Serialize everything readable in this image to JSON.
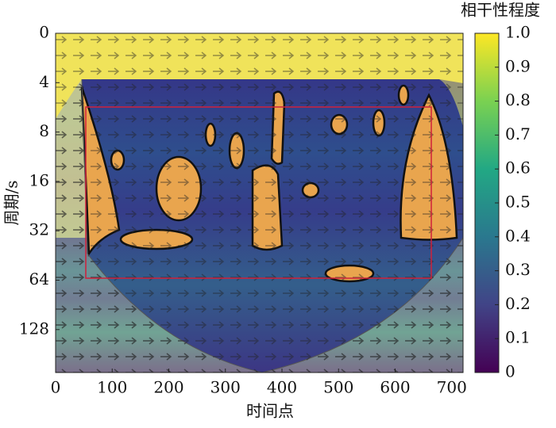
{
  "chart_data": {
    "type": "heatmap",
    "xlabel": "时间点",
    "ylabel": "周期/s",
    "colorbar_label": "相干性程度",
    "xlim": [
      0,
      720
    ],
    "xticks": [
      0,
      100,
      200,
      300,
      400,
      500,
      600,
      700
    ],
    "y_categories": [
      "0",
      "4",
      "8",
      "16",
      "32",
      "64",
      "128"
    ],
    "clim": [
      0,
      1
    ],
    "cticks": [
      0,
      0.1,
      0.2,
      0.3,
      0.4,
      0.5,
      0.6,
      0.7,
      0.8,
      0.9,
      {
        "value": 1,
        "label": "1.0"
      }
    ]
  }
}
